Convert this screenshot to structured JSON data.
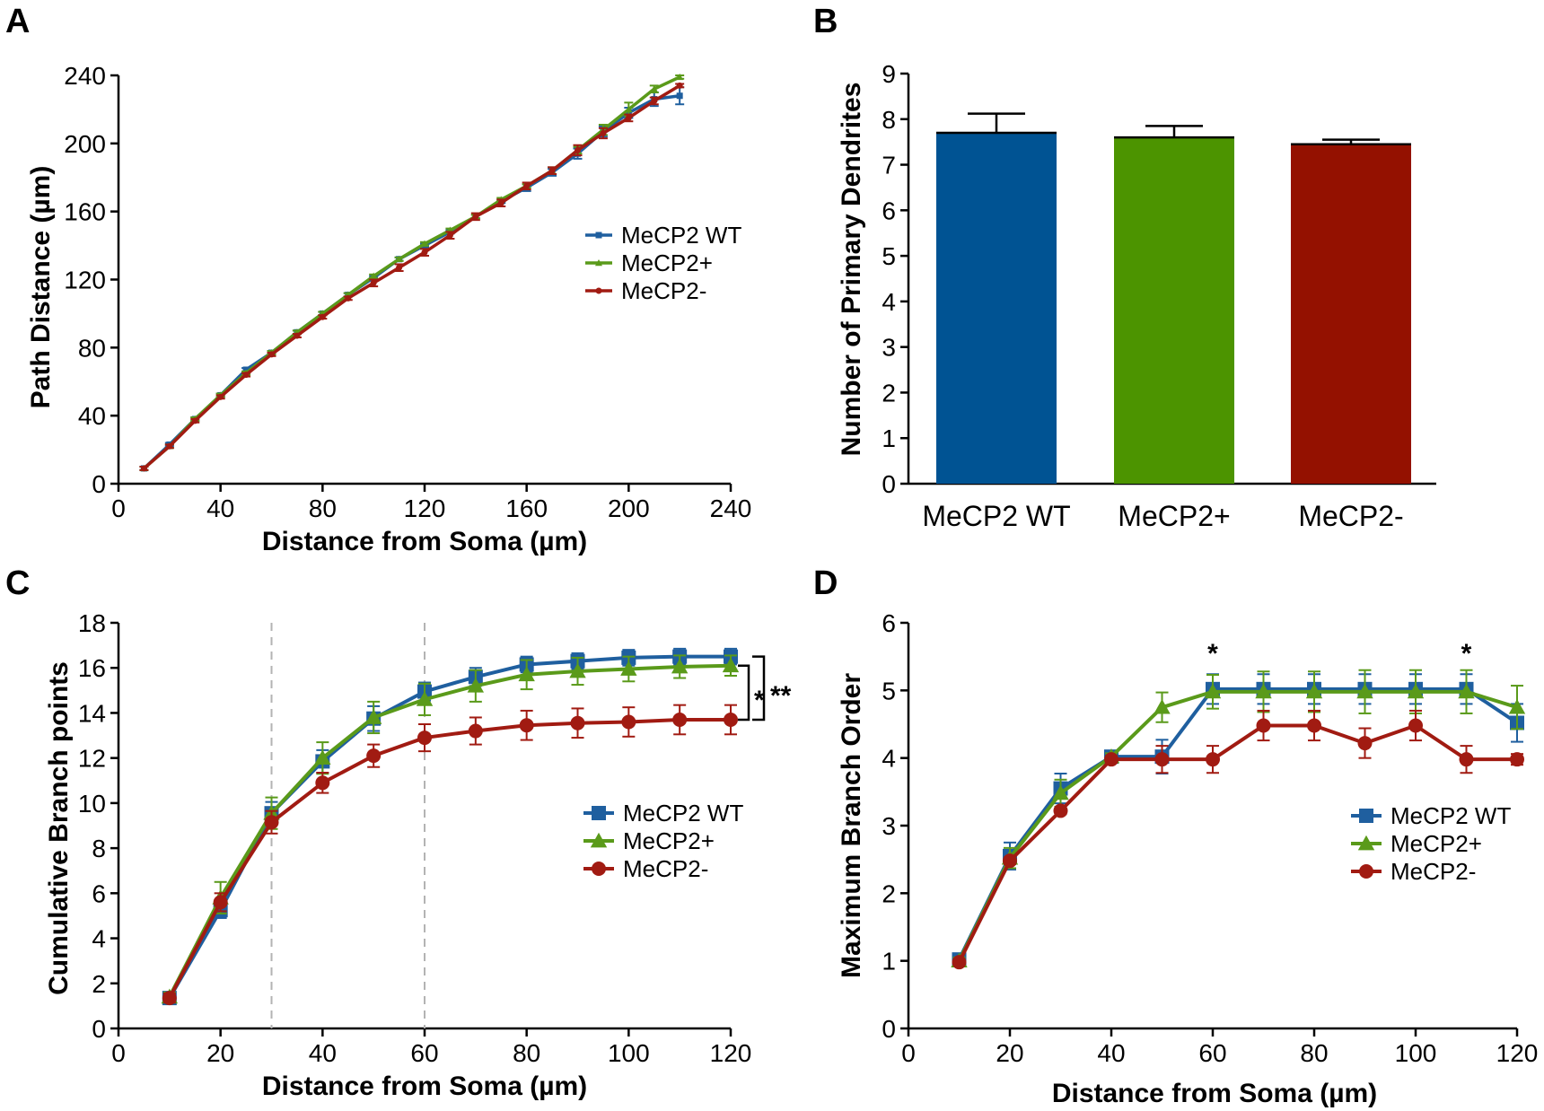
{
  "chart_data": [
    {
      "panel": "A",
      "type": "line",
      "xlabel": "Distance from Soma (µm)",
      "ylabel": "Path Distance (µm)",
      "xlim": [
        0,
        240
      ],
      "ylim": [
        0,
        240
      ],
      "xticks": [
        0,
        40,
        80,
        120,
        160,
        200,
        240
      ],
      "yticks": [
        0,
        40,
        80,
        120,
        160,
        200,
        240
      ],
      "legend_position": "right-middle",
      "x": [
        10,
        20,
        30,
        40,
        50,
        60,
        70,
        80,
        90,
        100,
        110,
        120,
        130,
        140,
        150,
        160,
        170,
        180,
        190,
        200,
        210,
        220
      ],
      "series": [
        {
          "name": "MeCP2 WT",
          "color": "#1f5f9f",
          "marker": "square-small",
          "values": [
            9,
            23,
            38,
            52,
            67,
            77,
            89,
            100,
            111,
            121,
            132,
            140,
            148,
            157,
            166,
            174,
            183,
            194,
            207,
            218,
            226,
            228
          ],
          "errors": [
            1,
            1,
            1,
            1,
            1,
            1,
            1,
            1,
            1,
            1,
            1,
            1,
            1,
            1,
            1,
            2,
            2,
            3,
            3,
            3,
            4,
            5
          ]
        },
        {
          "name": "MeCP2+",
          "color": "#5a9a1a",
          "marker": "triangle-small",
          "values": [
            9,
            22,
            38,
            52,
            65,
            77,
            89,
            100,
            111,
            122,
            132,
            141,
            149,
            157,
            167,
            175,
            184,
            196,
            208,
            220,
            232,
            239
          ],
          "errors": [
            1,
            1,
            1,
            1,
            1,
            1,
            1,
            1,
            1,
            1,
            1,
            1,
            1,
            1,
            1,
            1,
            2,
            2,
            3,
            4,
            2,
            1
          ]
        },
        {
          "name": "MeCP2-",
          "color": "#a11b12",
          "marker": "circle-small",
          "values": [
            9,
            22,
            37,
            51,
            64,
            76,
            87,
            98,
            109,
            118,
            127,
            136,
            146,
            157,
            165,
            175,
            184,
            196,
            206,
            215,
            225,
            234
          ],
          "errors": [
            1,
            1,
            1,
            1,
            1,
            1,
            1,
            1,
            1,
            2,
            2,
            2,
            2,
            2,
            2,
            2,
            2,
            3,
            3,
            2,
            2,
            1
          ]
        }
      ]
    },
    {
      "panel": "B",
      "type": "bar",
      "ylabel": "Number of Primary Dendrites",
      "ylim": [
        0,
        9
      ],
      "yticks": [
        0,
        1,
        2,
        3,
        4,
        5,
        6,
        7,
        8,
        9
      ],
      "categories": [
        "MeCP2 WT",
        "MeCP2+",
        "MeCP2-"
      ],
      "values": [
        7.7,
        7.6,
        7.45
      ],
      "errors": [
        0.42,
        0.25,
        0.1
      ],
      "colors": [
        "#005393",
        "#4c9400",
        "#941100"
      ]
    },
    {
      "panel": "C",
      "type": "line",
      "xlabel": "Distance from Soma (µm)",
      "ylabel": "Cumulative Branch points",
      "xlim": [
        0,
        120
      ],
      "ylim": [
        0,
        18
      ],
      "xticks": [
        0,
        20,
        40,
        60,
        80,
        100,
        120
      ],
      "yticks": [
        0,
        2,
        4,
        6,
        8,
        10,
        12,
        14,
        16,
        18
      ],
      "vlines": [
        30,
        60
      ],
      "legend_position": "right-middle",
      "x": [
        10,
        20,
        30,
        40,
        50,
        60,
        70,
        80,
        90,
        100,
        110,
        120
      ],
      "series": [
        {
          "name": "MeCP2 WT",
          "color": "#1f5f9f",
          "marker": "square",
          "values": [
            1.35,
            5.25,
            9.55,
            11.85,
            13.75,
            14.95,
            15.6,
            16.15,
            16.3,
            16.45,
            16.5,
            16.5
          ],
          "errors": [
            0.2,
            0.35,
            0.5,
            0.5,
            0.55,
            0.4,
            0.4,
            0.35,
            0.35,
            0.35,
            0.35,
            0.35
          ]
        },
        {
          "name": "MeCP2+",
          "color": "#5a9a1a",
          "marker": "triangle",
          "values": [
            1.4,
            5.8,
            9.55,
            12.0,
            13.8,
            14.6,
            15.2,
            15.7,
            15.85,
            15.95,
            16.05,
            16.1
          ],
          "errors": [
            0.2,
            0.7,
            0.7,
            0.7,
            0.7,
            0.7,
            0.7,
            0.65,
            0.6,
            0.55,
            0.5,
            0.45
          ]
        },
        {
          "name": "MeCP2-",
          "color": "#a11b12",
          "marker": "circle",
          "values": [
            1.35,
            5.6,
            9.15,
            10.9,
            12.1,
            12.9,
            13.2,
            13.45,
            13.55,
            13.6,
            13.7,
            13.7
          ],
          "errors": [
            0.2,
            0.4,
            0.5,
            0.45,
            0.5,
            0.6,
            0.6,
            0.65,
            0.65,
            0.65,
            0.65,
            0.65
          ]
        }
      ],
      "significance": [
        {
          "label": "*",
          "between": [
            "MeCP2+",
            "MeCP2-"
          ]
        },
        {
          "label": "**",
          "between": [
            "MeCP2 WT",
            "MeCP2-"
          ]
        }
      ]
    },
    {
      "panel": "D",
      "type": "line",
      "xlabel": "Distance from Soma (µm)",
      "ylabel": "Maximum Branch Order",
      "xlim": [
        0,
        120
      ],
      "ylim": [
        0,
        6
      ],
      "xticks": [
        0,
        20,
        40,
        60,
        80,
        100,
        120
      ],
      "yticks": [
        0,
        1,
        2,
        3,
        4,
        5,
        6
      ],
      "legend_position": "right-middle",
      "x": [
        10,
        20,
        30,
        40,
        50,
        60,
        70,
        80,
        90,
        100,
        110,
        120
      ],
      "series": [
        {
          "name": "MeCP2 WT",
          "color": "#1f5f9f",
          "marker": "square",
          "values": [
            1.02,
            2.55,
            3.55,
            4.02,
            4.02,
            5.02,
            5.02,
            5.02,
            5.02,
            5.02,
            5.02,
            4.52
          ],
          "errors": [
            0.05,
            0.2,
            0.22,
            0.05,
            0.25,
            0.22,
            0.22,
            0.22,
            0.22,
            0.22,
            0.22,
            0.28
          ]
        },
        {
          "name": "MeCP2+",
          "color": "#5a9a1a",
          "marker": "triangle",
          "values": [
            1.0,
            2.52,
            3.48,
            4.02,
            4.75,
            4.98,
            4.98,
            4.98,
            4.98,
            4.98,
            4.98,
            4.75
          ],
          "errors": [
            0.05,
            0.15,
            0.2,
            0.05,
            0.22,
            0.25,
            0.3,
            0.3,
            0.32,
            0.32,
            0.32,
            0.32
          ]
        },
        {
          "name": "MeCP2-",
          "color": "#a11b12",
          "marker": "circle",
          "values": [
            0.98,
            2.48,
            3.22,
            3.98,
            3.98,
            3.98,
            4.48,
            4.48,
            4.22,
            4.48,
            3.98,
            3.98
          ],
          "errors": [
            0.03,
            0.05,
            0.05,
            0.05,
            0.2,
            0.2,
            0.22,
            0.22,
            0.22,
            0.22,
            0.2,
            0.08
          ]
        }
      ],
      "annotations": [
        {
          "x": 60,
          "text": "*"
        },
        {
          "x": 110,
          "text": "*"
        }
      ]
    }
  ]
}
